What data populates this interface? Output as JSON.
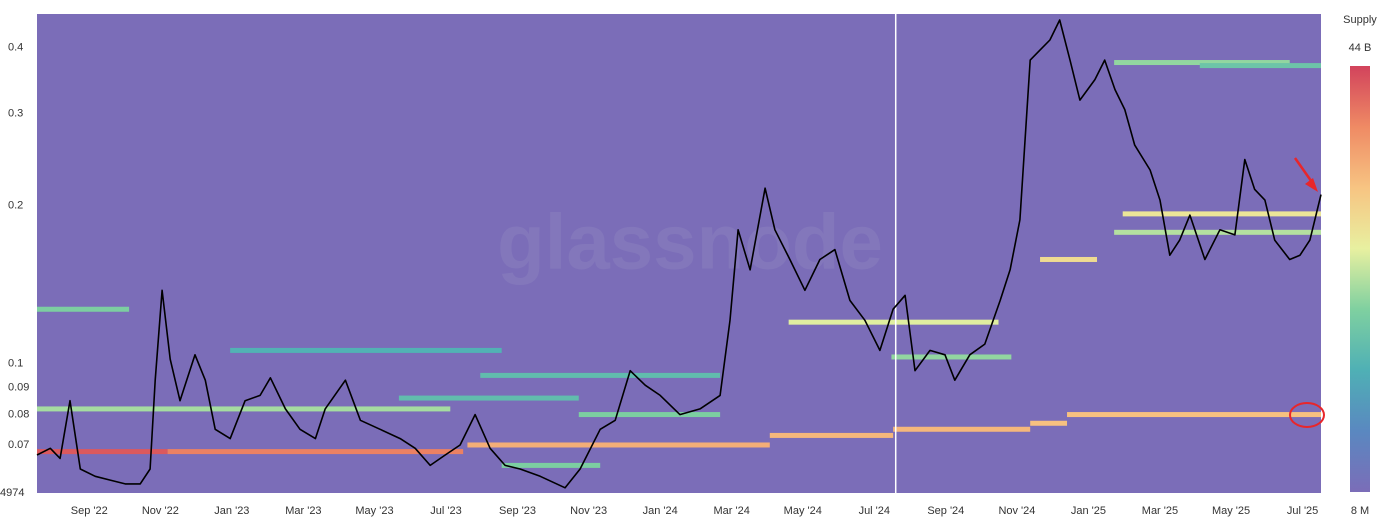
{
  "chart_data": {
    "type": "line",
    "watermark": "glassnode",
    "color": "#000000",
    "background": "#7b6db8",
    "log_y": true,
    "xlim": [
      2022.545,
      2025.543
    ],
    "ylim": [
      0.0567,
      0.464
    ],
    "y_bottom_label": "4974",
    "yticks": [
      0.4,
      0.3,
      0.2,
      0.1,
      0.09,
      0.08,
      0.07
    ],
    "xticks": [
      {
        "value": 2022.667,
        "label": "Sep '22"
      },
      {
        "value": 2022.833,
        "label": "Nov '22"
      },
      {
        "value": 2023.0,
        "label": "Jan '23"
      },
      {
        "value": 2023.167,
        "label": "Mar '23"
      },
      {
        "value": 2023.333,
        "label": "May '23"
      },
      {
        "value": 2023.5,
        "label": "Jul '23"
      },
      {
        "value": 2023.667,
        "label": "Sep '23"
      },
      {
        "value": 2023.833,
        "label": "Nov '23"
      },
      {
        "value": 2024.0,
        "label": "Jan '24"
      },
      {
        "value": 2024.167,
        "label": "Mar '24"
      },
      {
        "value": 2024.333,
        "label": "May '24"
      },
      {
        "value": 2024.5,
        "label": "Jul '24"
      },
      {
        "value": 2024.667,
        "label": "Sep '24"
      },
      {
        "value": 2024.833,
        "label": "Nov '24"
      },
      {
        "value": 2025.0,
        "label": "Jan '25"
      },
      {
        "value": 2025.167,
        "label": "Mar '25"
      },
      {
        "value": 2025.333,
        "label": "May '25"
      },
      {
        "value": 2025.5,
        "label": "Jul '25"
      }
    ],
    "vline": 2024.55,
    "x": [
      2022.545,
      2022.576,
      2022.599,
      2022.622,
      2022.646,
      2022.681,
      2022.716,
      2022.751,
      2022.786,
      2022.809,
      2022.821,
      2022.837,
      2022.856,
      2022.879,
      2022.914,
      2022.938,
      2022.961,
      2022.996,
      2023.031,
      2023.066,
      2023.09,
      2023.125,
      2023.159,
      2023.195,
      2023.218,
      2023.265,
      2023.3,
      2023.346,
      2023.393,
      2023.428,
      2023.463,
      2023.498,
      2023.533,
      2023.568,
      2023.603,
      2023.638,
      2023.673,
      2023.72,
      2023.778,
      2023.813,
      2023.86,
      2023.895,
      2023.93,
      2023.965,
      2024.0,
      2024.046,
      2024.093,
      2024.14,
      2024.163,
      2024.182,
      2024.21,
      2024.245,
      2024.268,
      2024.303,
      2024.338,
      2024.373,
      2024.408,
      2024.443,
      2024.478,
      2024.513,
      2024.544,
      2024.572,
      2024.595,
      2024.63,
      2024.665,
      2024.688,
      2024.723,
      2024.758,
      2024.794,
      2024.817,
      2024.84,
      2024.864,
      2024.887,
      2024.91,
      2024.933,
      2024.957,
      2024.98,
      2025.015,
      2025.038,
      2025.062,
      2025.085,
      2025.108,
      2025.144,
      2025.167,
      2025.19,
      2025.213,
      2025.237,
      2025.272,
      2025.307,
      2025.342,
      2025.365,
      2025.388,
      2025.412,
      2025.435,
      2025.47,
      2025.494,
      2025.517,
      2025.543
    ],
    "values": [
      0.067,
      0.069,
      0.066,
      0.085,
      0.063,
      0.061,
      0.06,
      0.059,
      0.059,
      0.063,
      0.093,
      0.138,
      0.102,
      0.085,
      0.104,
      0.093,
      0.075,
      0.072,
      0.085,
      0.087,
      0.094,
      0.082,
      0.075,
      0.072,
      0.082,
      0.093,
      0.078,
      0.075,
      0.072,
      0.069,
      0.064,
      0.067,
      0.07,
      0.08,
      0.069,
      0.064,
      0.063,
      0.061,
      0.058,
      0.063,
      0.075,
      0.078,
      0.097,
      0.091,
      0.087,
      0.08,
      0.082,
      0.087,
      0.121,
      0.18,
      0.151,
      0.216,
      0.18,
      0.158,
      0.138,
      0.158,
      0.165,
      0.132,
      0.121,
      0.106,
      0.127,
      0.135,
      0.097,
      0.106,
      0.104,
      0.093,
      0.104,
      0.109,
      0.132,
      0.151,
      0.188,
      0.379,
      0.396,
      0.414,
      0.452,
      0.379,
      0.318,
      0.348,
      0.379,
      0.333,
      0.305,
      0.261,
      0.234,
      0.205,
      0.161,
      0.172,
      0.192,
      0.158,
      0.18,
      0.176,
      0.245,
      0.215,
      0.205,
      0.172,
      0.158,
      0.161,
      0.172,
      0.21
    ],
    "bands": [
      {
        "start": 2022.545,
        "end": 2022.85,
        "price": 0.068,
        "supply": 30000000000
      },
      {
        "start": 2022.85,
        "end": 2023.54,
        "price": 0.068,
        "supply": 15000000000
      },
      {
        "start": 2023.55,
        "end": 2024.256,
        "price": 0.07,
        "supply": 6000000000
      },
      {
        "start": 2024.256,
        "end": 2024.544,
        "price": 0.073,
        "supply": 5000000000
      },
      {
        "start": 2024.544,
        "end": 2024.864,
        "price": 0.075,
        "supply": 5000000000
      },
      {
        "start": 2024.864,
        "end": 2024.95,
        "price": 0.077,
        "supply": 4000000000
      },
      {
        "start": 2024.95,
        "end": 2025.543,
        "price": 0.08,
        "supply": 4000000000
      },
      {
        "start": 2022.545,
        "end": 2023.51,
        "price": 0.082,
        "supply": 500000000
      },
      {
        "start": 2022.545,
        "end": 2022.76,
        "price": 0.127,
        "supply": 300000000
      },
      {
        "start": 2024.3,
        "end": 2024.79,
        "price": 0.12,
        "supply": 1000000000
      },
      {
        "start": 2025.08,
        "end": 2025.543,
        "price": 0.193,
        "supply": 1500000000
      },
      {
        "start": 2025.06,
        "end": 2025.543,
        "price": 0.178,
        "supply": 600000000
      },
      {
        "start": 2025.06,
        "end": 2025.47,
        "price": 0.375,
        "supply": 400000000
      },
      {
        "start": 2024.887,
        "end": 2025.02,
        "price": 0.158,
        "supply": 2000000000
      },
      {
        "start": 2024.54,
        "end": 2024.82,
        "price": 0.103,
        "supply": 400000000
      },
      {
        "start": 2023.81,
        "end": 2024.14,
        "price": 0.08,
        "supply": 300000000
      },
      {
        "start": 2023.58,
        "end": 2024.14,
        "price": 0.095,
        "supply": 150000000
      },
      {
        "start": 2023.39,
        "end": 2023.81,
        "price": 0.086,
        "supply": 150000000
      },
      {
        "start": 2022.996,
        "end": 2023.63,
        "price": 0.106,
        "supply": 100000000
      },
      {
        "start": 2023.63,
        "end": 2023.86,
        "price": 0.064,
        "supply": 300000000
      },
      {
        "start": 2025.26,
        "end": 2025.543,
        "price": 0.37,
        "supply": 200000000
      }
    ],
    "colorbar": {
      "title": "Supply",
      "lim": [
        8000000,
        44000000000
      ],
      "ticks": [
        {
          "value": 44000000000,
          "label": "44 B"
        },
        {
          "value": 8000000,
          "label": "8 M"
        }
      ],
      "colorscale": [
        "#7b6db8",
        "#5a88c0",
        "#4fb0b5",
        "#7fd0a0",
        "#e8f0a0",
        "#f7c482",
        "#ef8a64",
        "#d2435c"
      ]
    }
  }
}
